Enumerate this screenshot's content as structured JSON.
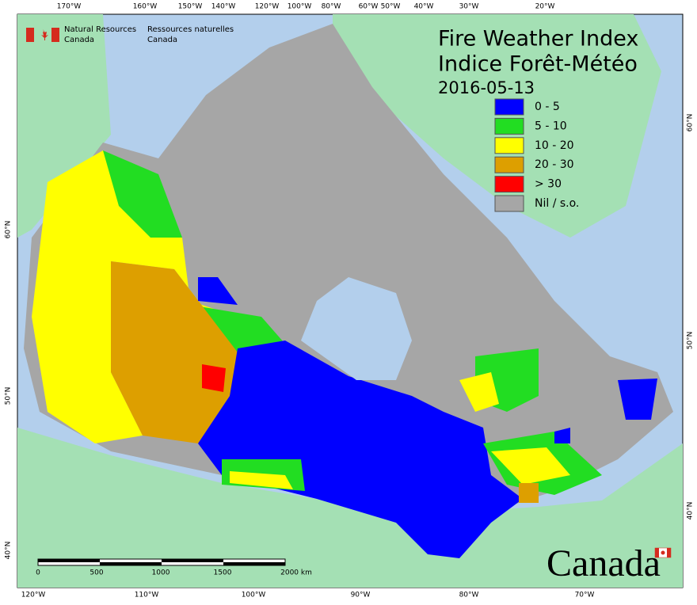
{
  "header": {
    "agency_en": [
      "Natural Resources",
      "Canada"
    ],
    "agency_fr": [
      "Ressources naturelles",
      "Canada"
    ],
    "wordmark": "Canada"
  },
  "title": {
    "lines": [
      "Fire Weather Index",
      "Indice Forêt-Météo"
    ],
    "date": "2016-05-13"
  },
  "legend": {
    "items": [
      {
        "label": "0 - 5",
        "color": "#0000ff"
      },
      {
        "label": "5 - 10",
        "color": "#22dd22"
      },
      {
        "label": "10 - 20",
        "color": "#ffff00"
      },
      {
        "label": "20 - 30",
        "color": "#dd9f00"
      },
      {
        "label": "> 30",
        "color": "#ff0000"
      },
      {
        "label": "Nil / s.o.",
        "color": "#a6a6a6"
      }
    ]
  },
  "graticule": {
    "top": [
      "170°W",
      "160°W",
      "150°W",
      "140°W",
      "120°W",
      "100°W",
      "80°W",
      "60°W",
      "50°W",
      "40°W",
      "30°W",
      "20°W"
    ],
    "bottom": [
      "120°W",
      "110°W",
      "100°W",
      "90°W",
      "80°W",
      "70°W"
    ],
    "left": [
      "60°N",
      "50°N",
      "40°N"
    ],
    "right": [
      "60°N",
      "50°N",
      "40°N"
    ]
  },
  "scale_bar": {
    "labels": [
      "0",
      "500",
      "1000",
      "1500",
      "2000 km"
    ]
  }
}
